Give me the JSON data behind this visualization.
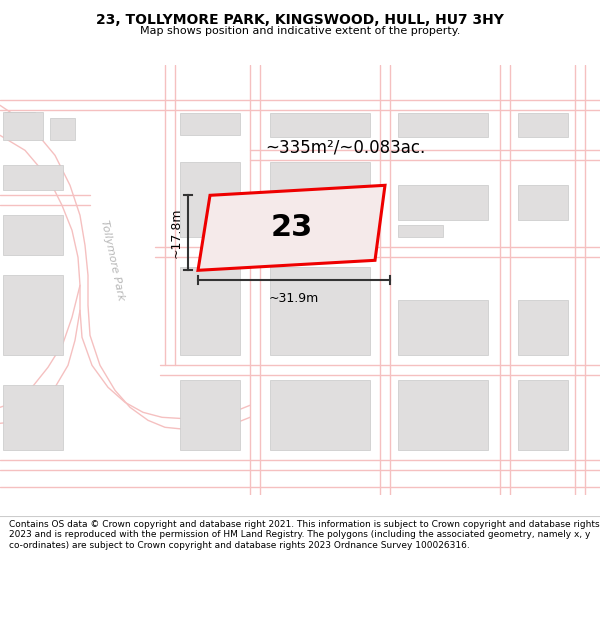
{
  "title": "23, TOLLYMORE PARK, KINGSWOOD, HULL, HU7 3HY",
  "subtitle": "Map shows position and indicative extent of the property.",
  "footer": "Contains OS data © Crown copyright and database right 2021. This information is subject to Crown copyright and database rights 2023 and is reproduced with the permission of HM Land Registry. The polygons (including the associated geometry, namely x, y co-ordinates) are subject to Crown copyright and database rights 2023 Ordnance Survey 100026316.",
  "area_label": "~335m²/~0.083ac.",
  "number_label": "23",
  "width_label": "~31.9m",
  "height_label": "~17.8m",
  "bg_color": "#f7f4f2",
  "road_color": "#f5c0c0",
  "road_lw": 1.2,
  "building_fill": "#e0dede",
  "building_edge": "#c8c8c8",
  "highlight_fill": "#f5eaea",
  "highlight_edge": "#ee0000",
  "road_name_color": "#b0b0b0",
  "dim_line_color": "#333333",
  "title_fontsize": 10,
  "subtitle_fontsize": 8,
  "footer_fontsize": 6.5
}
